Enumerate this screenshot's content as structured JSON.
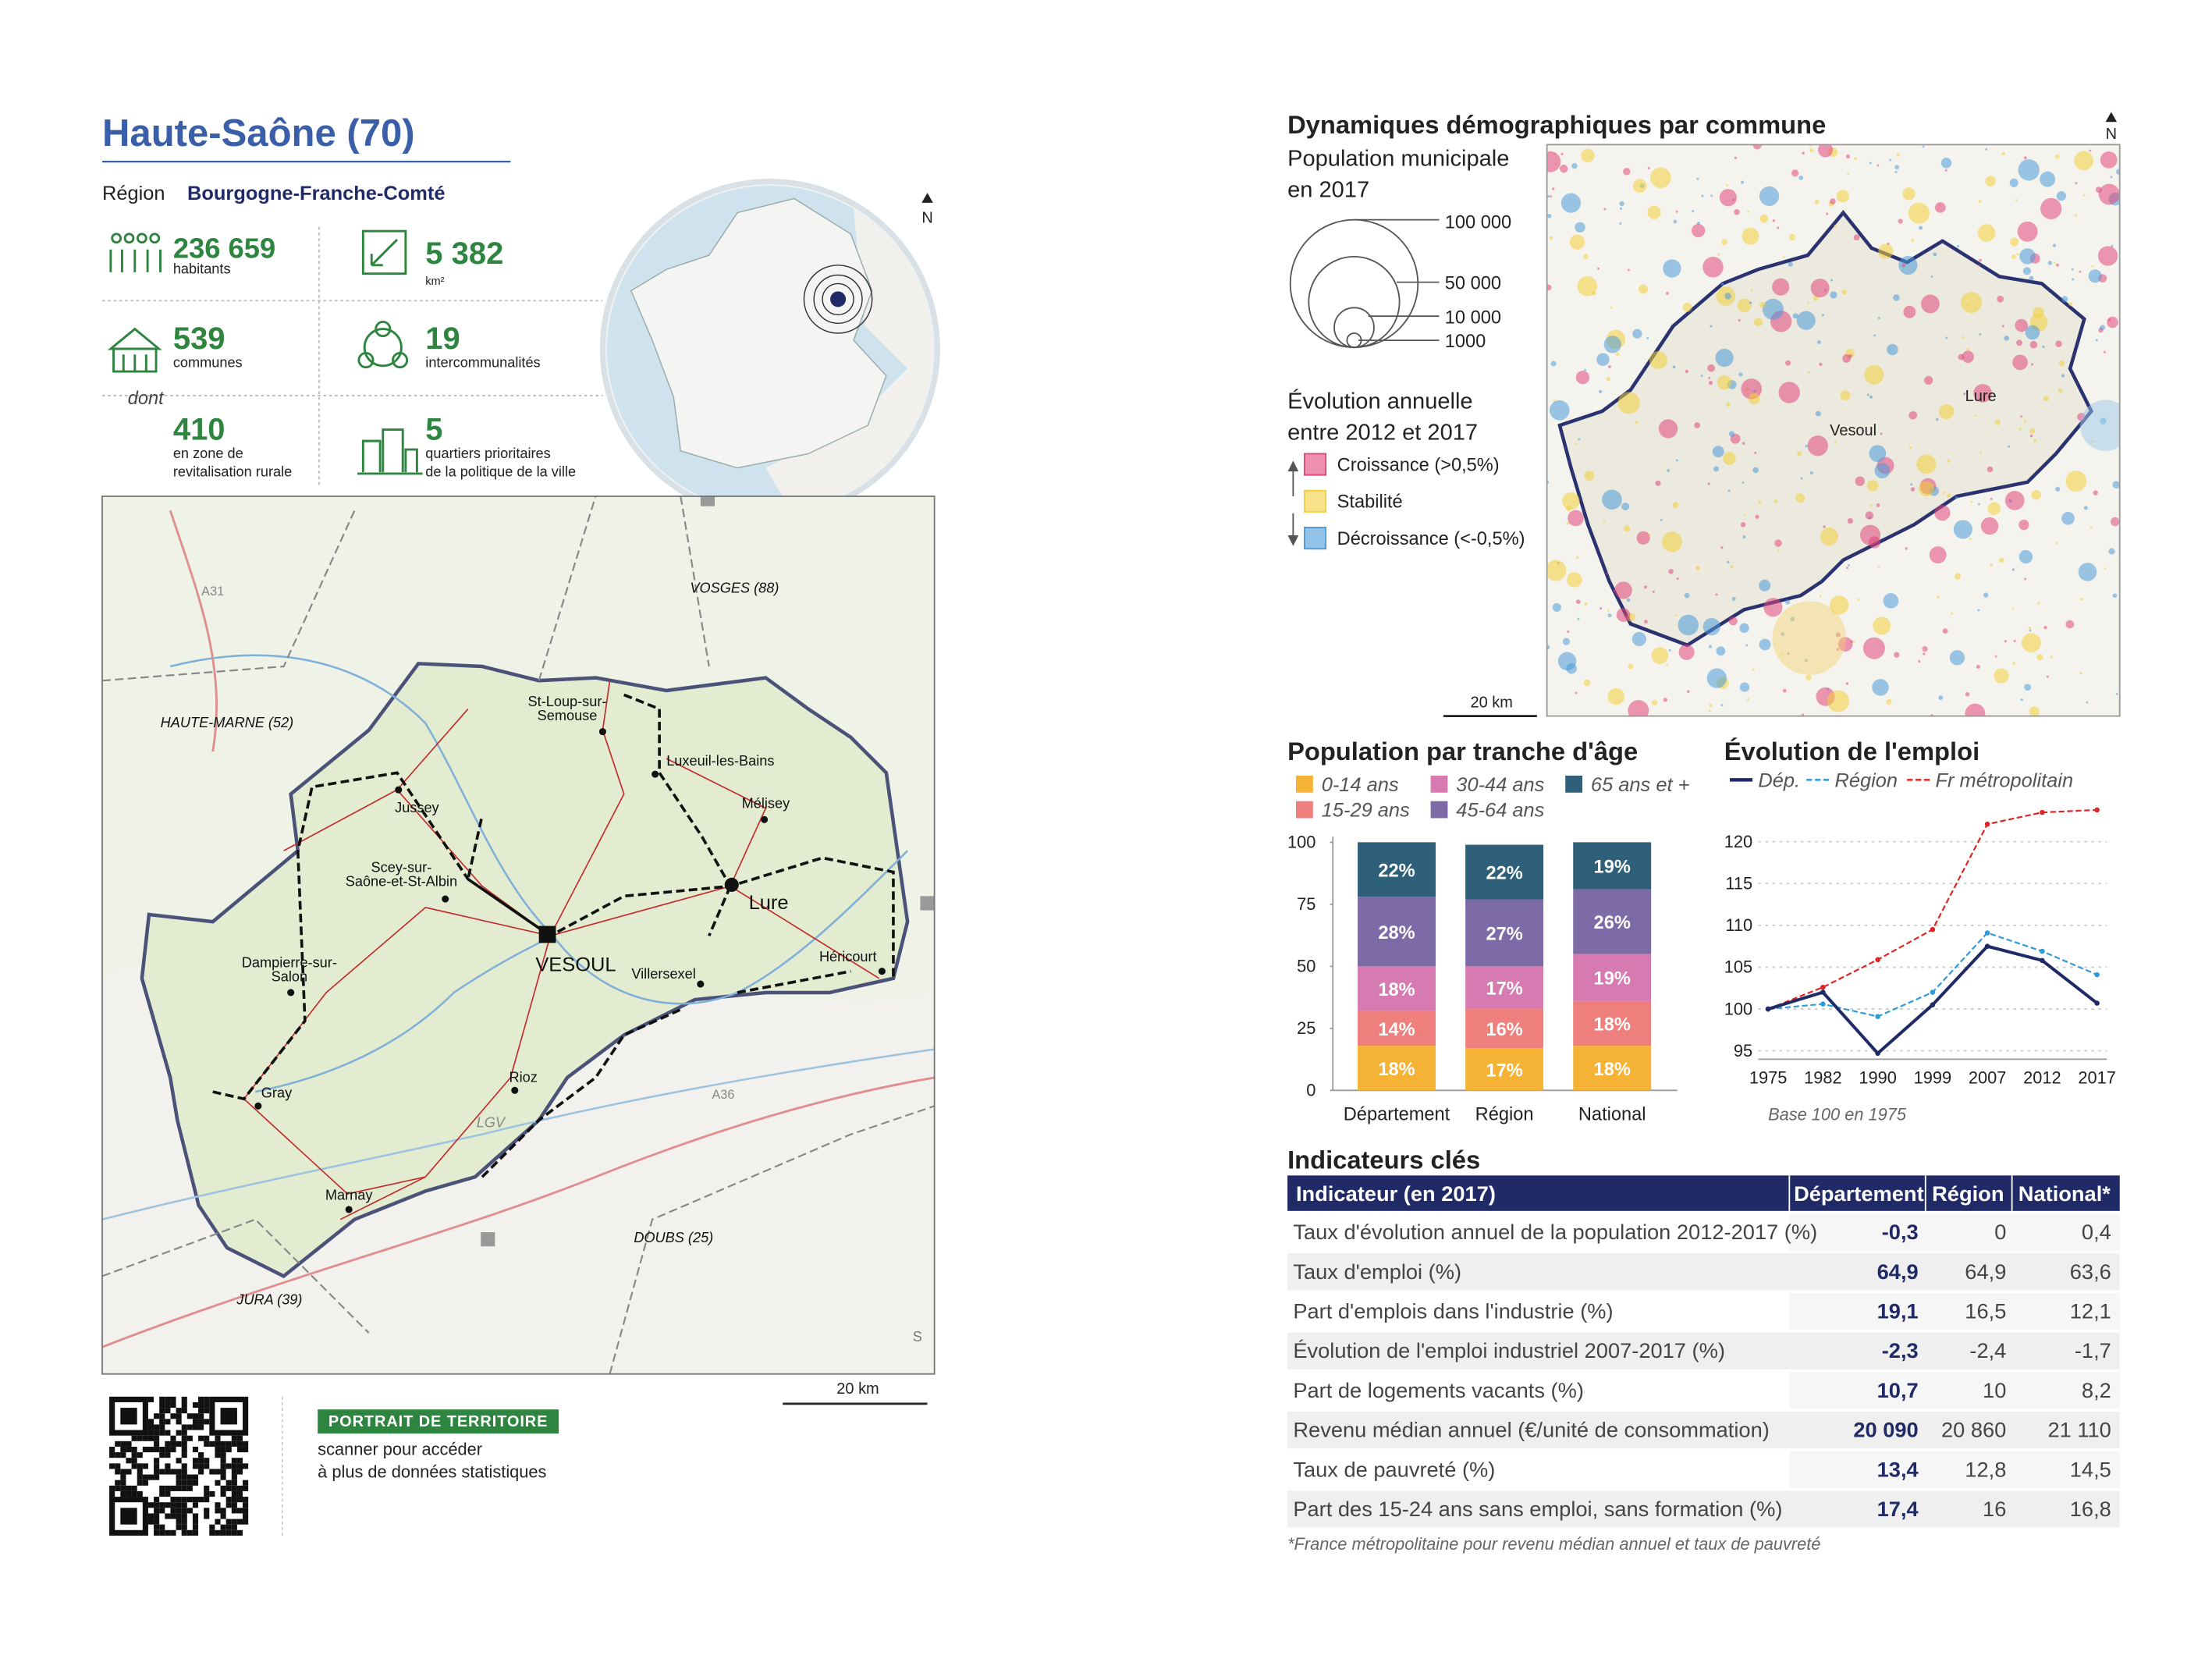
{
  "header": {
    "title": "Haute-Saône (70)",
    "region_label": "Région",
    "region": "Bourgogne-Franche-Comté"
  },
  "stats": [
    {
      "value": "236 659",
      "label": [
        "habitants"
      ]
    },
    {
      "value": "5 382",
      "label": [
        "km²"
      ]
    },
    {
      "value": "539",
      "label": [
        "communes"
      ]
    },
    {
      "value": "19",
      "label": [
        "intercommunalités"
      ]
    },
    {
      "value": "410",
      "label": [
        "en zone de",
        "revitalisation rurale"
      ]
    },
    {
      "value": "5",
      "label": [
        "quartiers prioritaires",
        "de la politique de la ville"
      ]
    }
  ],
  "stats_connector": "dont",
  "inset_map": {
    "north": "N"
  },
  "map": {
    "labels": [
      [
        "VOSGES (88)"
      ],
      [
        "HAUTE-MARNE (52)"
      ],
      [
        "St-Loup-sur-",
        "Semouse"
      ],
      [
        "Luxeuil-les-Bains"
      ],
      [
        "Mélisey"
      ],
      [
        "Jussey"
      ],
      [
        "Scey-sur-",
        "Saône-et-St-Albin"
      ],
      [
        "Lure"
      ],
      [
        "VESOUL"
      ],
      [
        "Dampierre-sur-",
        "Salon"
      ],
      [
        "Villersexel"
      ],
      [
        "Héricourt"
      ],
      [
        "Gray"
      ],
      [
        "Rioz"
      ],
      [
        "LGV"
      ],
      [
        "Marnay"
      ],
      [
        "DOUBS (25)"
      ],
      [
        "JURA (39)"
      ],
      [
        "A31"
      ],
      [
        "A36"
      ]
    ],
    "scale": "20 km"
  },
  "qr": {
    "badge": "PORTRAIT DE TERRITOIRE",
    "text": [
      "scanner pour accéder",
      "à plus de données statistiques"
    ]
  },
  "demo_map": {
    "title": "Dynamiques démographiques par commune",
    "size_title": [
      "Population municipale",
      "en 2017"
    ],
    "size_legend": [
      "100 000",
      "50 000",
      "10 000",
      "1000"
    ],
    "evolution_title": [
      "Évolution annuelle",
      "entre 2012 et 2017"
    ],
    "classes": [
      {
        "label": "Croissance (>0,5%)",
        "color": "#e0457b"
      },
      {
        "label": "Stabilité",
        "color": "#f2cf3b"
      },
      {
        "label": "Décroissance (<-0,5%)",
        "color": "#4a9ad8"
      }
    ],
    "cities": [
      "Vesoul",
      "Lure"
    ],
    "scale": "20 km",
    "north": "N"
  },
  "age_chart": {
    "type": "bar",
    "title": "Population par tranche d'âge",
    "categories": [
      "Département",
      "Région",
      "National"
    ],
    "series": [
      {
        "name": "0-14 ans",
        "color": "#f5b335",
        "values": [
          18,
          17,
          18
        ],
        "value_labels": [
          "18%",
          "17%",
          "18%"
        ]
      },
      {
        "name": "15-29 ans",
        "color": "#ef7f7c",
        "values": [
          14,
          16,
          18
        ],
        "value_labels": [
          "14%",
          "16%",
          "18%"
        ]
      },
      {
        "name": "30-44 ans",
        "color": "#d77ab2",
        "values": [
          18,
          17,
          19
        ],
        "value_labels": [
          "18%",
          "17%",
          "19%"
        ]
      },
      {
        "name": "45-64 ans",
        "color": "#7d6ba7",
        "values": [
          28,
          27,
          26
        ],
        "value_labels": [
          "28%",
          "27%",
          "26%"
        ]
      },
      {
        "name": "65 ans et +",
        "color": "#2f6079",
        "values": [
          22,
          22,
          19
        ],
        "value_labels": [
          "22%",
          "22%",
          "19%"
        ]
      }
    ],
    "ylim": [
      0,
      100
    ],
    "yticks": [
      0,
      25,
      50,
      75,
      100
    ]
  },
  "employment_chart": {
    "type": "line",
    "title": "Évolution de l'emploi",
    "categories": [
      "1975",
      "1982",
      "1990",
      "1999",
      "2007",
      "2012",
      "2017"
    ],
    "series": [
      {
        "name": "Dép.",
        "color": "#1f2a66",
        "dash": "solid",
        "values": [
          100,
          102,
          94.7,
          100.5,
          107.5,
          105.8,
          100.7
        ]
      },
      {
        "name": "Région",
        "color": "#2f9ad8",
        "dash": "dashed",
        "values": [
          100,
          100.6,
          99.1,
          102,
          109.1,
          106.9,
          104.1
        ]
      },
      {
        "name": "Fr métropolitain",
        "color": "#e02424",
        "dash": "dashed",
        "values": [
          100,
          102.6,
          105.9,
          109.5,
          122.1,
          123.5,
          123.8
        ]
      }
    ],
    "ylim": [
      94,
      124
    ],
    "yticks": [
      95,
      100,
      105,
      110,
      115,
      120
    ],
    "grid": true,
    "note": "Base 100 en 1975"
  },
  "table": {
    "title": "Indicateurs clés",
    "headers": [
      "Indicateur (en 2017)",
      "Département",
      "Région",
      "National*"
    ],
    "rows": [
      [
        "Taux d'évolution annuel de la population 2012-2017 (%)",
        "-0,3",
        "0",
        "0,4"
      ],
      [
        "Taux d'emploi (%)",
        "64,9",
        "64,9",
        "63,6"
      ],
      [
        "Part d'emplois dans l'industrie (%)",
        "19,1",
        "16,5",
        "12,1"
      ],
      [
        "Évolution de l'emploi industriel 2007-2017 (%)",
        "-2,3",
        "-2,4",
        "-1,7"
      ],
      [
        "Part de logements vacants (%)",
        "10,7",
        "10",
        "8,2"
      ],
      [
        "Revenu médian annuel (€/unité de consommation)",
        "20 090",
        "20 860",
        "21 110"
      ],
      [
        "Taux de pauvreté (%)",
        "13,4",
        "12,8",
        "14,5"
      ],
      [
        "Part des 15-24 ans sans emploi, sans formation (%)",
        "17,4",
        "16",
        "16,8"
      ]
    ],
    "footnote": "*France métropolitaine pour revenu médian annuel et taux de pauvreté"
  }
}
